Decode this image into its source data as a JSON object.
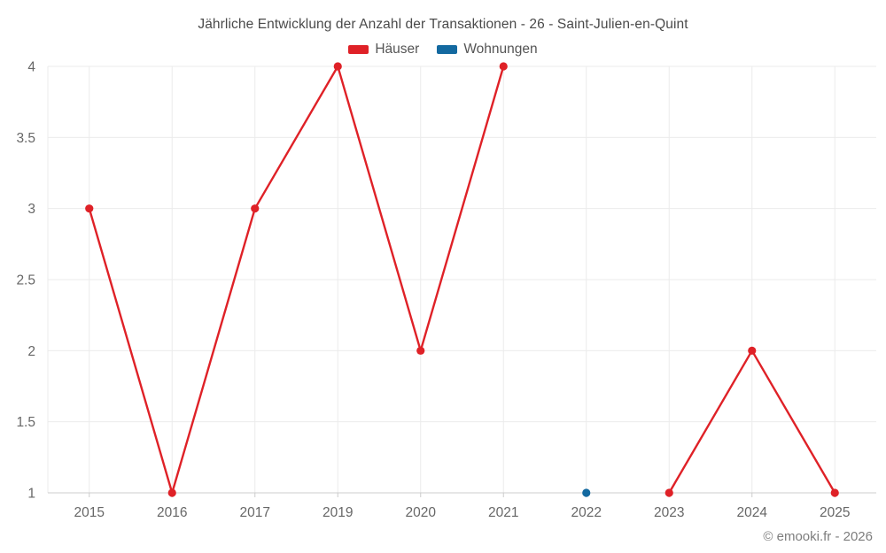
{
  "chart_data": {
    "type": "line",
    "title": "Jährliche Entwicklung der Anzahl der Transaktionen - 26 - Saint-Julien-en-Quint",
    "categories": [
      "2015",
      "2016",
      "2017",
      "2019",
      "2020",
      "2021",
      "2022",
      "2023",
      "2024",
      "2025"
    ],
    "series": [
      {
        "name": "Häuser",
        "color": "#df2127",
        "values": [
          3,
          1,
          3,
          4,
          2,
          4,
          null,
          1,
          2,
          1
        ]
      },
      {
        "name": "Wohnungen",
        "color": "#1369a0",
        "values": [
          null,
          null,
          null,
          null,
          null,
          null,
          1,
          null,
          null,
          null
        ]
      }
    ],
    "xlabel": "",
    "ylabel": "",
    "yticks": [
      1,
      1.5,
      2,
      2.5,
      3,
      3.5,
      4
    ],
    "ylim": [
      1,
      4
    ],
    "grid": true,
    "legend_position": "top"
  },
  "footer": {
    "copyright": "© emooki.fr - 2026"
  },
  "colors": {
    "background": "#ffffff",
    "grid": "#ebebeb",
    "axis": "#cccccc",
    "tick_label": "#676767",
    "title": "#4a4a4a",
    "legend_label": "#555555",
    "copyright": "#7d7d7d"
  }
}
